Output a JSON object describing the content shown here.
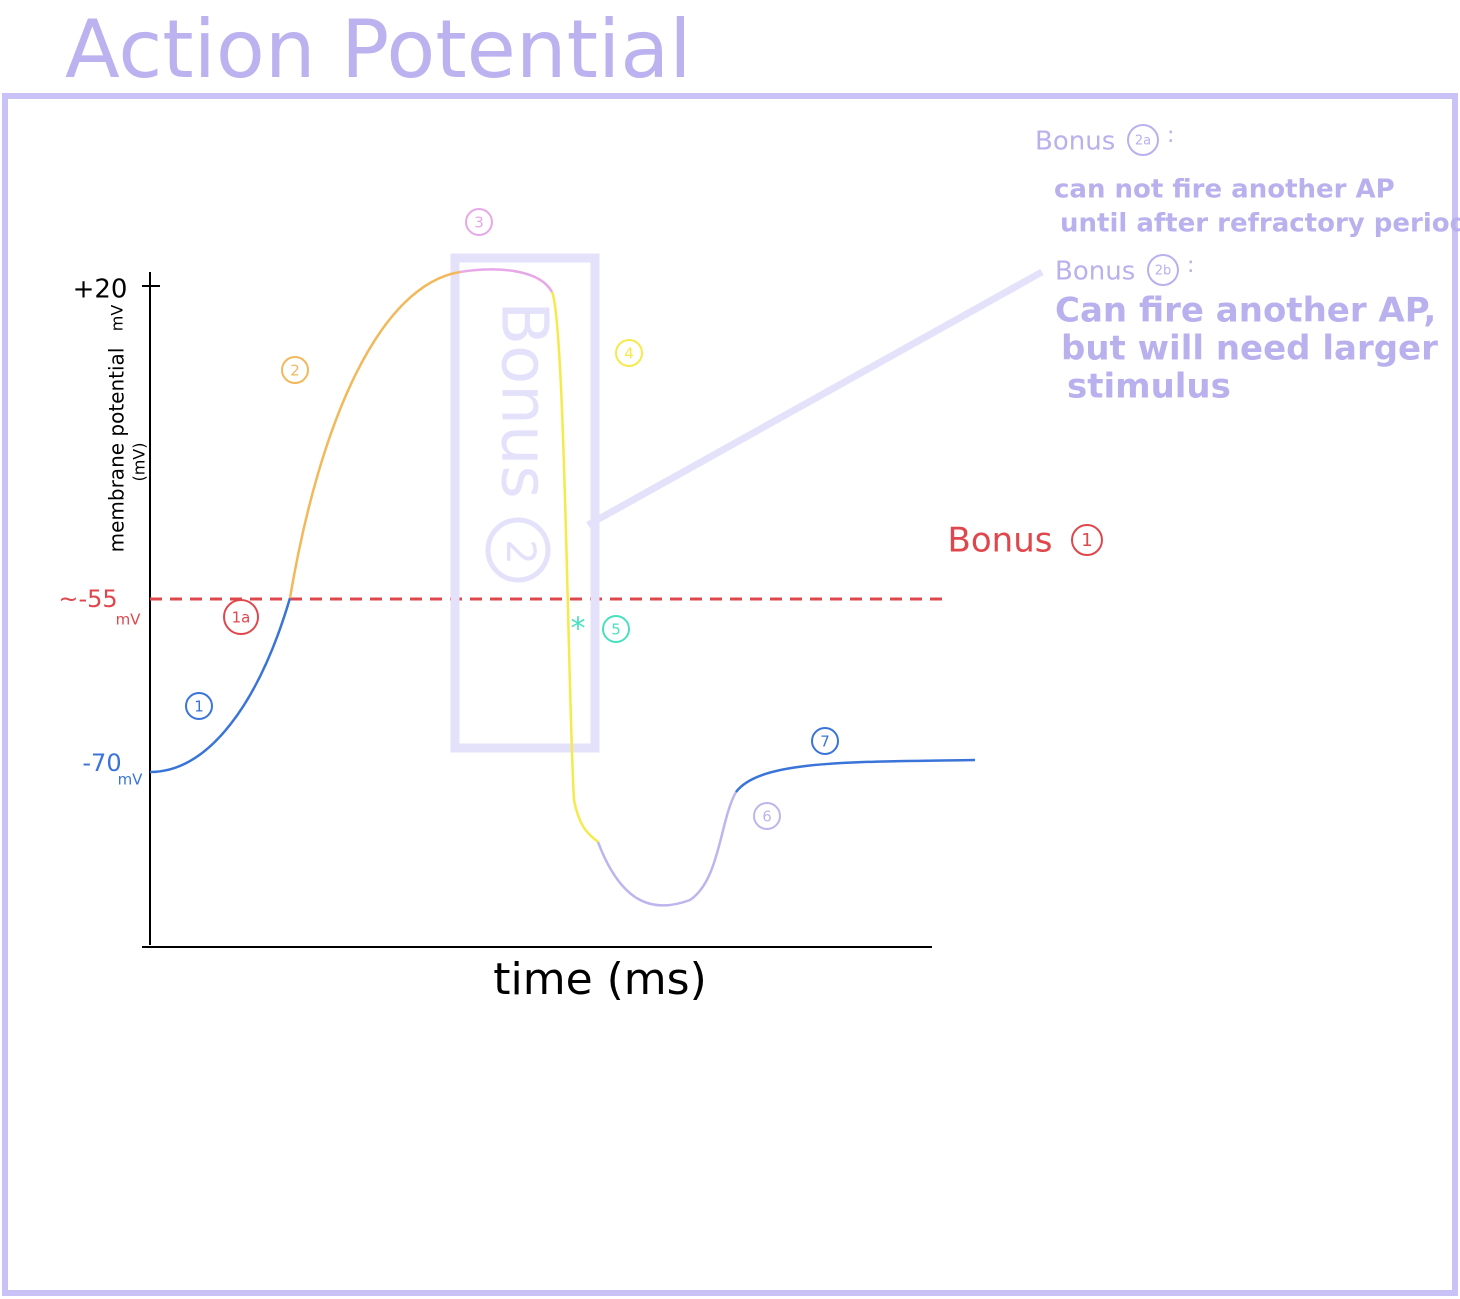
{
  "title": "Action Potential",
  "axes": {
    "y_label": "membrane potential",
    "y_label_unit": "(mV)",
    "y_top": "+20",
    "y_top_unit": "mV",
    "threshold": "~-55",
    "threshold_unit": "mV",
    "resting": "-70",
    "resting_unit": "mV",
    "x_label": "time (ms)"
  },
  "phase_markers": [
    "1",
    "1a",
    "2",
    "3",
    "4",
    "5",
    "6",
    "7"
  ],
  "star": "*",
  "bonus_box": {
    "label": "Bonus",
    "number": "2"
  },
  "bonus_1": {
    "label": "Bonus",
    "number": "1"
  },
  "notes": [
    {
      "label": "Bonus",
      "tag": "2a",
      "colon": ":",
      "lines": [
        "can not fire another AP",
        "until after refractory period"
      ]
    },
    {
      "label": "Bonus",
      "tag": "2b",
      "colon": ":",
      "lines": [
        "Can fire another AP,",
        "but will need larger",
        "stimulus"
      ]
    }
  ]
}
